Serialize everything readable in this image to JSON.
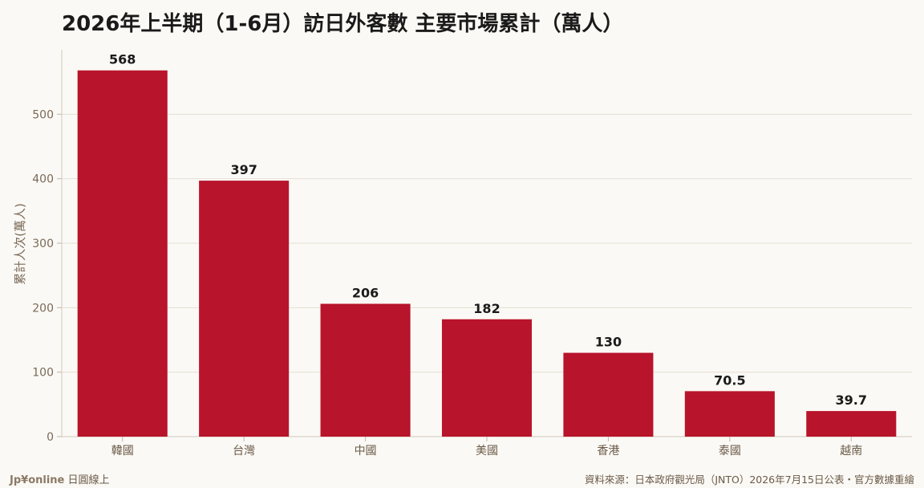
{
  "chart_data": {
    "type": "bar",
    "title": "2026年上半期（1-6月）訪日外客數 主要市場累計（萬人）",
    "ylabel": "累計人次(萬人)",
    "xlabel": "",
    "categories": [
      "韓國",
      "台灣",
      "中國",
      "美國",
      "香港",
      "泰國",
      "越南"
    ],
    "values": [
      568,
      397,
      206,
      182,
      130,
      70.5,
      39.7
    ],
    "value_labels": [
      "568",
      "397",
      "206",
      "182",
      "130",
      "70.5",
      "39.7"
    ],
    "ylim": [
      0,
      600
    ],
    "yticks": [
      0,
      100,
      200,
      300,
      400,
      500
    ],
    "grid": true,
    "bar_color": "#b8142b"
  },
  "footer": {
    "brand": "Jp¥online",
    "brand_suffix": "日圓線上",
    "source": "資料來源：日本政府觀光局（JNTO）2026年7月15日公表・官方數據重繪"
  }
}
